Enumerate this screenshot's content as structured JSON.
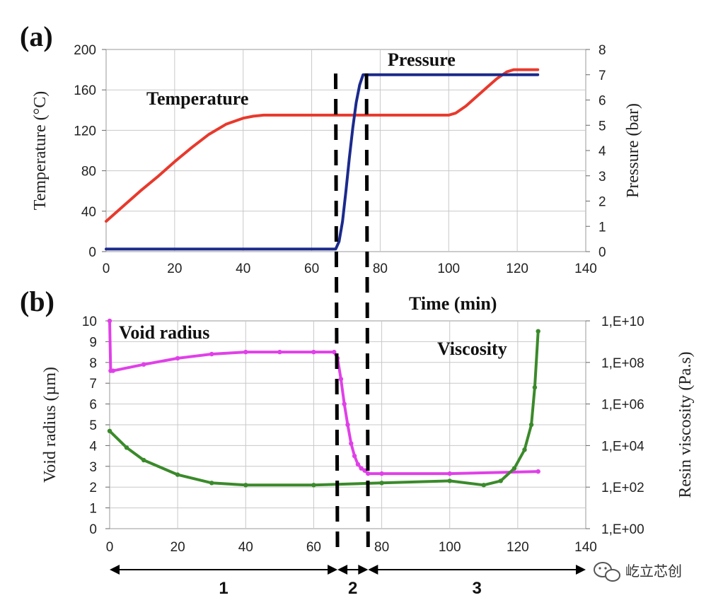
{
  "chart_data": [
    {
      "panel": "(a)",
      "type": "line",
      "xlabel": "Time (min)",
      "ylabel": "Temperature (°C)",
      "y2label": "Pressure (bar)",
      "xlim": [
        0,
        140
      ],
      "ylim": [
        0,
        200
      ],
      "y2lim": [
        0,
        8
      ],
      "xticks": [
        "0",
        "20",
        "40",
        "60",
        "80",
        "100",
        "120",
        "140"
      ],
      "yticks": [
        "0",
        "40",
        "80",
        "120",
        "160",
        "200"
      ],
      "y2ticks": [
        "0",
        "1",
        "2",
        "3",
        "4",
        "5",
        "6",
        "7",
        "8"
      ],
      "grid": true,
      "series": [
        {
          "name": "Temperature",
          "axis": "left",
          "color": "#e8392c",
          "x": [
            0,
            5,
            10,
            15,
            20,
            25,
            30,
            35,
            40,
            43,
            46,
            50,
            60,
            70,
            80,
            90,
            100,
            102,
            105,
            108,
            111,
            114,
            117,
            119,
            126
          ],
          "y": [
            30,
            45,
            60,
            74,
            89,
            103,
            116,
            126,
            132,
            134,
            135,
            135,
            135,
            135,
            135,
            135,
            135,
            137,
            144,
            153,
            162,
            171,
            178,
            180,
            180
          ]
        },
        {
          "name": "Pressure",
          "axis": "right",
          "color": "#1b2a8c",
          "x": [
            0,
            60,
            67,
            68,
            69,
            70,
            71,
            72,
            73,
            74,
            75,
            76,
            126
          ],
          "y": [
            0.1,
            0.1,
            0.1,
            0.4,
            1.2,
            2.4,
            3.7,
            4.9,
            5.9,
            6.6,
            7.0,
            7.0,
            7.0
          ]
        }
      ]
    },
    {
      "panel": "(b)",
      "type": "scatter",
      "xlabel": "",
      "ylabel": "Void radius (µm)",
      "y2label": "Resin viscosity (Pa.s)",
      "xlim": [
        0,
        140
      ],
      "ylim": [
        0,
        10
      ],
      "y2lim_log10": [
        0,
        10
      ],
      "xticks": [
        "0",
        "20",
        "40",
        "60",
        "80",
        "100",
        "120",
        "140"
      ],
      "yticks": [
        "0",
        "1",
        "2",
        "3",
        "4",
        "5",
        "6",
        "7",
        "8",
        "9",
        "10"
      ],
      "y2ticks": [
        "1,E+00",
        "1,E+02",
        "1,E+04",
        "1,E+06",
        "1,E+08",
        "1,E+10"
      ],
      "grid": true,
      "series": [
        {
          "name": "Void radius",
          "axis": "left",
          "color": "#e040e8",
          "x": [
            0,
            0.3,
            1,
            10,
            20,
            30,
            40,
            50,
            60,
            66,
            67,
            68,
            69,
            70,
            71,
            72,
            73,
            74,
            75,
            76,
            80,
            100,
            126
          ],
          "y": [
            10,
            7.6,
            7.6,
            7.9,
            8.2,
            8.4,
            8.5,
            8.5,
            8.5,
            8.5,
            8.2,
            7.2,
            6.0,
            5.0,
            4.1,
            3.5,
            3.1,
            2.9,
            2.8,
            2.65,
            2.65,
            2.65,
            2.75
          ]
        },
        {
          "name": "Viscosity",
          "axis": "right",
          "color": "#3a8a2a",
          "x": [
            0,
            5,
            10,
            20,
            30,
            40,
            60,
            80,
            100,
            110,
            115,
            119,
            122,
            124,
            125,
            126
          ],
          "y_log10": [
            4.7,
            3.9,
            3.3,
            2.6,
            2.2,
            2.1,
            2.1,
            2.2,
            2.3,
            2.1,
            2.3,
            2.9,
            3.8,
            5.0,
            6.8,
            9.5
          ]
        }
      ]
    }
  ],
  "markers": {
    "phase_boundaries_min": [
      67,
      76
    ],
    "phases": [
      {
        "label": "1",
        "from": 0,
        "to": 67
      },
      {
        "label": "2",
        "from": 67,
        "to": 76
      },
      {
        "label": "3",
        "from": 76,
        "to": 140
      }
    ]
  },
  "watermark": "屹立芯创"
}
